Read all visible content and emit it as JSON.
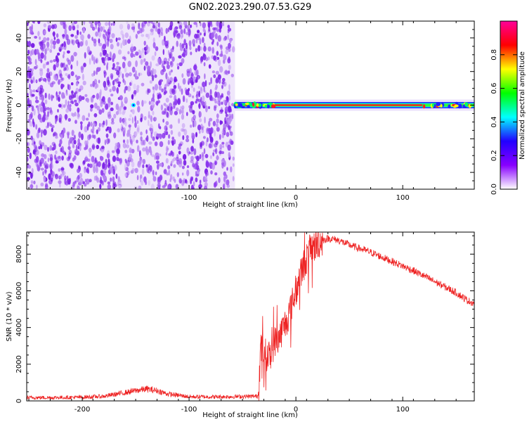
{
  "figure_title": "GN02.2023.290.07.53.G29",
  "colors": {
    "axis": "#000000",
    "snr_line": "#ee2222",
    "spectro_noise": "#7a1fe6",
    "ridge_center": "#ff1a1a",
    "colormap": [
      "#ffffff",
      "#8800ff",
      "#2200ff",
      "#00ffff",
      "#00ff00",
      "#ffff00",
      "#ff0000",
      "#ff0099"
    ]
  },
  "chart_data": [
    {
      "type": "heatmap",
      "title": "GN02.2023.290.07.53.G29",
      "xlabel": "Height of straight line (km)",
      "ylabel": "Frequency (Hz)",
      "xlim": [
        -252,
        167
      ],
      "ylim": [
        -50,
        50
      ],
      "xticks": [
        -200,
        -100,
        0,
        100
      ],
      "yticks": [
        -40,
        -20,
        0,
        20,
        40
      ],
      "grid": false,
      "colorbar": {
        "label": "Normalized spectral amplitude",
        "range": [
          0,
          1
        ],
        "ticks": [
          0.0,
          0.2,
          0.4,
          0.6,
          0.8
        ]
      },
      "features": [
        {
          "description_region": "broadband low-amplitude noise",
          "x_range": [
            -252,
            -57
          ],
          "y_range": [
            -50,
            50
          ],
          "amplitude_approx": 0.05
        },
        {
          "description_region": "narrow spectral line at 0 Hz",
          "x_range": [
            -57,
            167
          ],
          "frequency_hz": 0,
          "amplitude_approx": 0.9
        },
        {
          "description_region": "weak spot",
          "x": -152,
          "y": 0,
          "amplitude_approx": 0.45
        }
      ]
    },
    {
      "type": "line",
      "xlabel": "Height of straight line (km)",
      "ylabel": "SNR (10 * v/v)",
      "xlim": [
        -252,
        167
      ],
      "ylim": [
        0,
        9200
      ],
      "xticks": [
        -200,
        -100,
        0,
        100
      ],
      "yticks": [
        0,
        2000,
        4000,
        6000,
        8000
      ],
      "grid": false,
      "series": [
        {
          "x": [
            -252,
            -230,
            -200,
            -180,
            -160,
            -150,
            -140,
            -130,
            -120,
            -100,
            -80,
            -60,
            -40,
            -36,
            -35,
            -33,
            -30,
            -25,
            -20,
            -15,
            -10,
            -5,
            0,
            5,
            10,
            15,
            20,
            25,
            30,
            35,
            40,
            50,
            60,
            70,
            80,
            90,
            100,
            110,
            120,
            130,
            140,
            150,
            160,
            167
          ],
          "y": [
            180,
            180,
            200,
            250,
            450,
            560,
            650,
            560,
            380,
            230,
            220,
            230,
            250,
            250,
            500,
            2800,
            2600,
            2400,
            3200,
            3600,
            4200,
            5000,
            6000,
            7000,
            7800,
            8300,
            8600,
            8750,
            8850,
            8820,
            8750,
            8500,
            8300,
            8100,
            7850,
            7600,
            7350,
            7100,
            6800,
            6500,
            6200,
            5900,
            5500,
            5300
          ]
        }
      ]
    }
  ],
  "tick_labels": {
    "top_x": [
      "-200",
      "-100",
      "0",
      "100"
    ],
    "top_y": [
      "-40",
      "-20",
      "0",
      "20",
      "40"
    ],
    "bottom_x": [
      "-200",
      "-100",
      "0",
      "100"
    ],
    "bottom_y": [
      "0",
      "2000",
      "4000",
      "6000",
      "8000"
    ],
    "colorbar": [
      "0.0",
      "0.2",
      "0.4",
      "0.6",
      "0.8"
    ]
  }
}
